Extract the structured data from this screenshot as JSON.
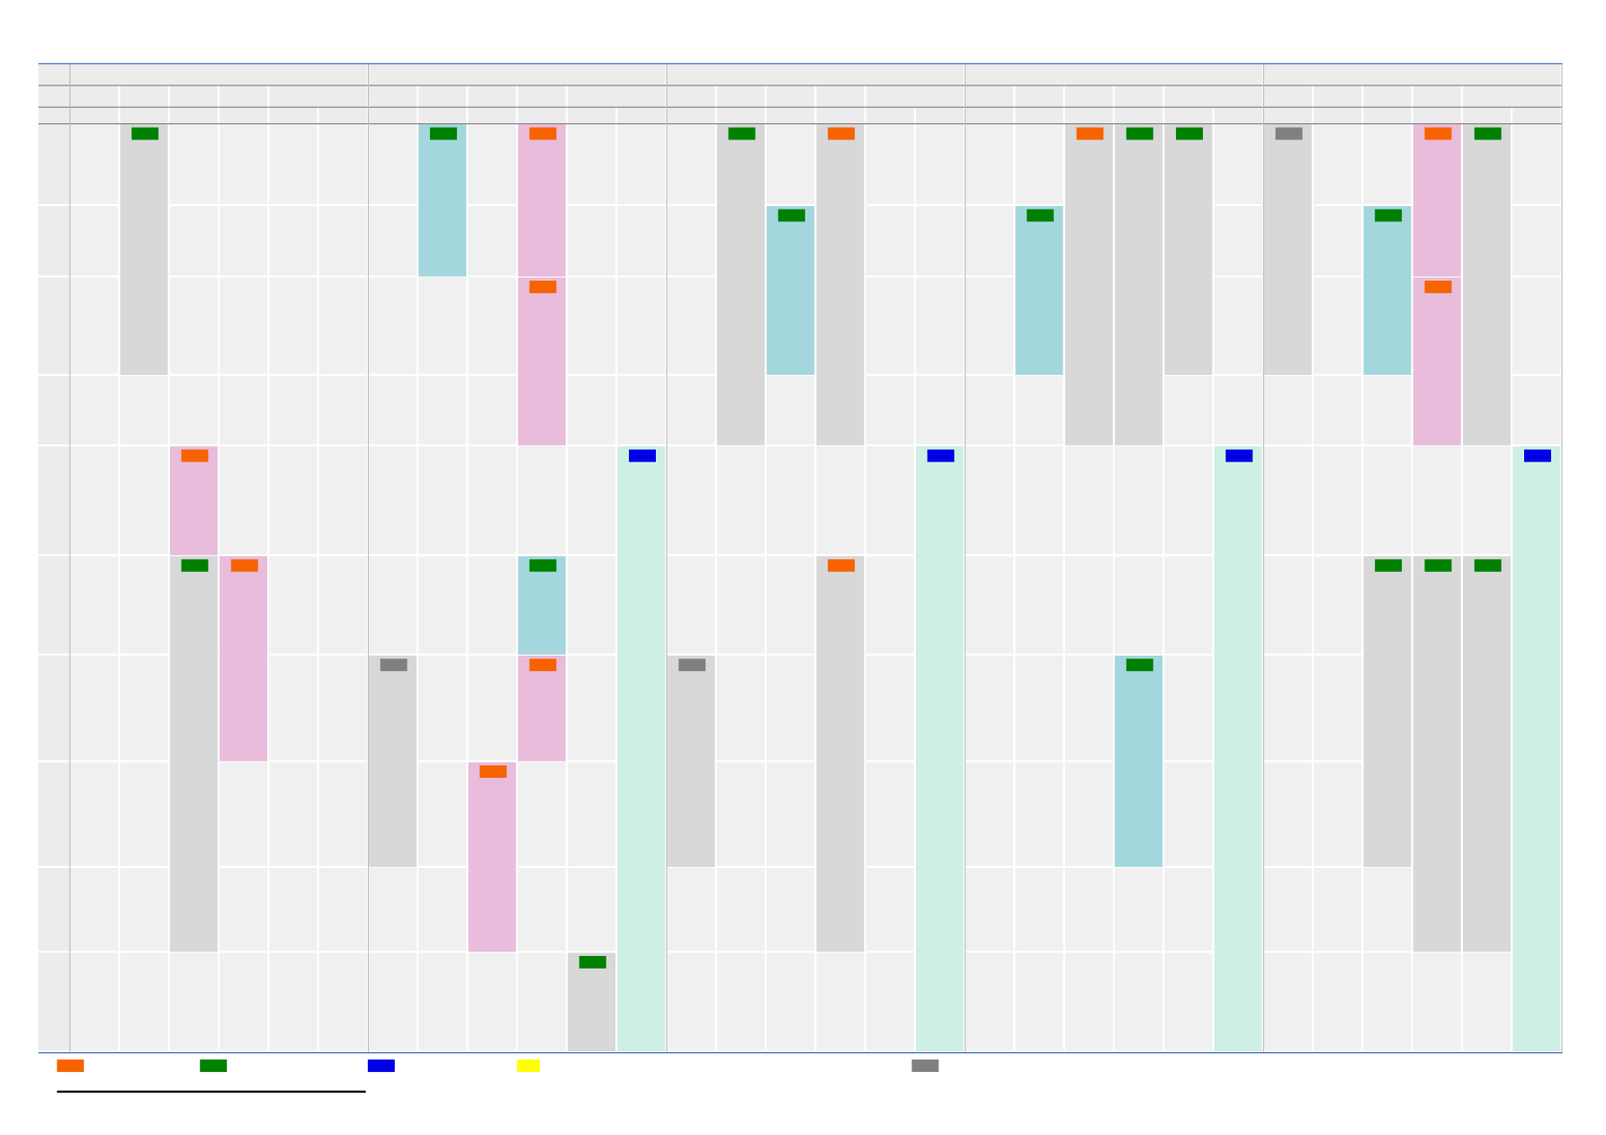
{
  "colors": {
    "grid_line": "#3060c0",
    "header_divider": "#808080",
    "cell_bg": "#f0f0f0",
    "header_bg": "#ececec",
    "fills": {
      "gray": "#d8d8d8",
      "blue": "#a3d7dd",
      "pink": "#e9bcdb",
      "mint": "#cef0e2"
    },
    "tags": {
      "orange": "#f76300",
      "green": "#008000",
      "blue": "#0000e6",
      "yellow": "#ffff00",
      "gray": "#808080"
    }
  },
  "schedule": {
    "groups": 5,
    "columns_per_group": 6,
    "blocks": [
      {
        "col": 1,
        "from": 0,
        "to": 3,
        "fill": "gray",
        "tag": "green"
      },
      {
        "col": 2,
        "from": 4,
        "to": 5,
        "fill": "pink",
        "tag": "orange"
      },
      {
        "col": 2,
        "from": 5,
        "to": 9,
        "fill": "gray",
        "tag": "green"
      },
      {
        "col": 3,
        "from": 5,
        "to": 7,
        "fill": "pink",
        "tag": "orange"
      },
      {
        "col": 7,
        "from": 0,
        "to": 2,
        "fill": "blue",
        "tag": "green"
      },
      {
        "col": 9,
        "from": 0,
        "to": 2,
        "fill": "pink",
        "tag": "orange"
      },
      {
        "col": 9,
        "from": 2,
        "to": 4,
        "fill": "pink",
        "tag": "orange"
      },
      {
        "col": 11,
        "from": 4,
        "to": 10,
        "fill": "mint",
        "tag": "blue"
      },
      {
        "col": 9,
        "from": 5,
        "to": 6,
        "fill": "blue",
        "tag": "green"
      },
      {
        "col": 9,
        "from": 6,
        "to": 7,
        "fill": "pink",
        "tag": "orange"
      },
      {
        "col": 6,
        "from": 6,
        "to": 8,
        "fill": "gray",
        "tag": "gray"
      },
      {
        "col": 8,
        "from": 7,
        "to": 9,
        "fill": "pink",
        "tag": "orange"
      },
      {
        "col": 10,
        "from": 9,
        "to": 10,
        "fill": "gray",
        "tag": "green"
      },
      {
        "col": 13,
        "from": 0,
        "to": 4,
        "fill": "gray",
        "tag": "green"
      },
      {
        "col": 14,
        "from": 1,
        "to": 3,
        "fill": "blue",
        "tag": "green"
      },
      {
        "col": 15,
        "from": 0,
        "to": 4,
        "fill": "gray",
        "tag": "orange"
      },
      {
        "col": 17,
        "from": 4,
        "to": 10,
        "fill": "mint",
        "tag": "blue"
      },
      {
        "col": 15,
        "from": 5,
        "to": 9,
        "fill": "gray",
        "tag": "orange"
      },
      {
        "col": 12,
        "from": 6,
        "to": 8,
        "fill": "gray",
        "tag": "gray"
      },
      {
        "col": 19,
        "from": 1,
        "to": 3,
        "fill": "blue",
        "tag": "green"
      },
      {
        "col": 20,
        "from": 0,
        "to": 4,
        "fill": "gray",
        "tag": "orange"
      },
      {
        "col": 21,
        "from": 0,
        "to": 4,
        "fill": "gray",
        "tag": "green"
      },
      {
        "col": 22,
        "from": 0,
        "to": 3,
        "fill": "gray",
        "tag": "green"
      },
      {
        "col": 23,
        "from": 4,
        "to": 10,
        "fill": "mint",
        "tag": "blue"
      },
      {
        "col": 21,
        "from": 6,
        "to": 8,
        "fill": "blue",
        "tag": "green"
      },
      {
        "col": 24,
        "from": 0,
        "to": 3,
        "fill": "gray",
        "tag": "gray"
      },
      {
        "col": 26,
        "from": 1,
        "to": 3,
        "fill": "blue",
        "tag": "green"
      },
      {
        "col": 27,
        "from": 0,
        "to": 2,
        "fill": "pink",
        "tag": "orange"
      },
      {
        "col": 27,
        "from": 2,
        "to": 4,
        "fill": "pink",
        "tag": "orange"
      },
      {
        "col": 28,
        "from": 0,
        "to": 4,
        "fill": "gray",
        "tag": "green"
      },
      {
        "col": 29,
        "from": 4,
        "to": 10,
        "fill": "mint",
        "tag": "blue"
      },
      {
        "col": 26,
        "from": 5,
        "to": 8,
        "fill": "gray",
        "tag": "green"
      },
      {
        "col": 27,
        "from": 5,
        "to": 9,
        "fill": "gray",
        "tag": "green"
      },
      {
        "col": 28,
        "from": 5,
        "to": 9,
        "fill": "gray",
        "tag": "green"
      }
    ]
  },
  "legend": {
    "swatches": [
      "orange",
      "green",
      "blue",
      "yellow",
      "gray"
    ]
  }
}
